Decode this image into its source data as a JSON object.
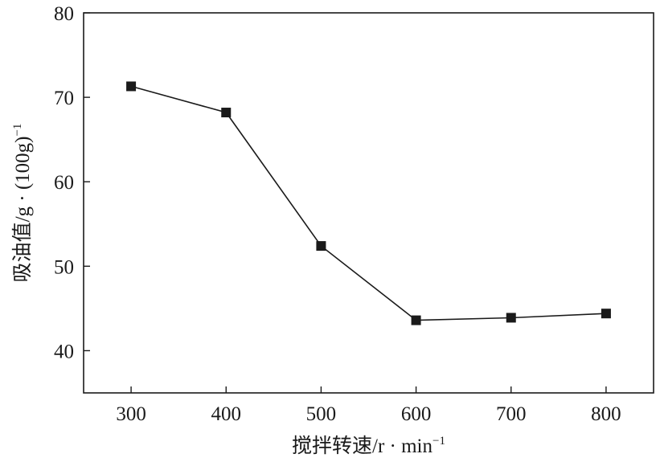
{
  "chart_data": {
    "type": "line",
    "title": "",
    "x": [
      300,
      400,
      500,
      600,
      700,
      800
    ],
    "series": [
      {
        "values": [
          71.3,
          68.2,
          52.4,
          43.6,
          43.9,
          44.4
        ]
      }
    ],
    "xlabel": {
      "text": "搅拌转速/r · min",
      "sup": "−1"
    },
    "ylabel": {
      "text": "吸油值/g · (100g)",
      "sup": "−1"
    },
    "xlim": [
      250,
      850
    ],
    "ylim": [
      35,
      80
    ],
    "xticks": [
      300,
      400,
      500,
      600,
      700,
      800
    ],
    "yticks": [
      40,
      50,
      60,
      70,
      80
    ],
    "grid": false,
    "legend": "none",
    "marker": "square",
    "colors": {
      "line": "#1a1a1a",
      "marker": "#1a1a1a",
      "axis": "#1a1a1a"
    }
  }
}
